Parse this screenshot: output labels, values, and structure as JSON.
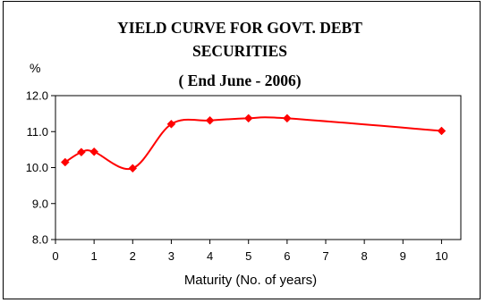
{
  "chart_data": {
    "type": "line",
    "title_lines": [
      "YIELD CURVE FOR GOVT. DEBT",
      "SECURITIES",
      "( End June - 2006)"
    ],
    "unit_label": "%",
    "xlabel": "Maturity (No. of years)",
    "ylabel": "",
    "xlim": [
      0,
      10.5
    ],
    "ylim": [
      8.0,
      12.0
    ],
    "x_ticks": [
      0,
      1,
      2,
      3,
      4,
      5,
      6,
      7,
      8,
      9,
      10
    ],
    "y_ticks": [
      8.0,
      9.0,
      10.0,
      11.0,
      12.0
    ],
    "y_tick_labels": [
      "8.0",
      "9.0",
      "10.0",
      "11.0",
      "12.0"
    ],
    "grid": false,
    "legend": "none",
    "line_color": "#ff0000",
    "marker": "diamond",
    "series": [
      {
        "x": [
          0.25,
          0.67,
          1,
          2,
          3,
          4,
          5,
          6,
          10
        ],
        "y": [
          10.15,
          10.43,
          10.44,
          9.98,
          11.21,
          11.31,
          11.37,
          11.37,
          11.02
        ]
      }
    ]
  }
}
